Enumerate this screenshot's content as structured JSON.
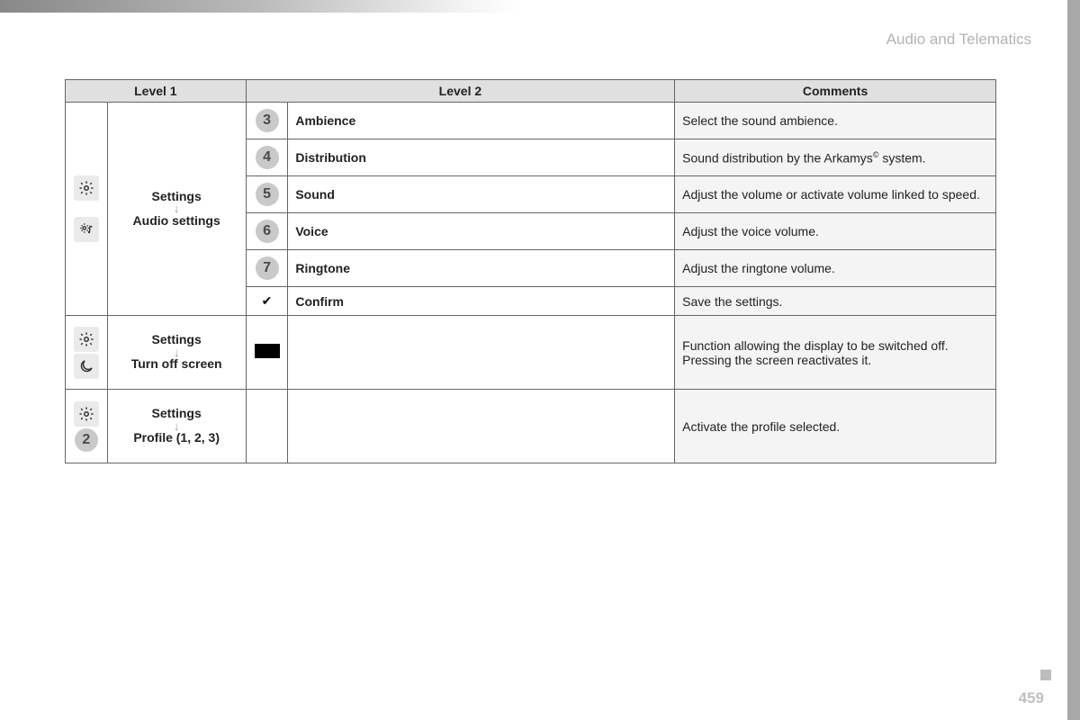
{
  "header": {
    "section_title": "Audio and Telematics"
  },
  "footer": {
    "page_number": "459"
  },
  "table": {
    "headers": {
      "col1": "Level 1",
      "col2": "Level 2",
      "col3": "Comments"
    },
    "block1": {
      "nav": {
        "top": "Settings",
        "bottom": "Audio settings"
      },
      "rows": [
        {
          "num": "3",
          "label": "Ambience",
          "comment": "Select the sound ambience."
        },
        {
          "num": "4",
          "label": "Distribution",
          "comment_html": "Sound distribution by the Arkamys<sup>©</sup> system."
        },
        {
          "num": "5",
          "label": "Sound",
          "comment": "Adjust the volume or activate volume linked to speed."
        },
        {
          "num": "6",
          "label": "Voice",
          "comment": "Adjust the voice volume."
        },
        {
          "num": "7",
          "label": "Ringtone",
          "comment": "Adjust the ringtone volume."
        },
        {
          "check": true,
          "label": "Confirm",
          "comment": "Save the settings."
        }
      ]
    },
    "block2": {
      "nav": {
        "top": "Settings",
        "bottom": "Turn off screen"
      },
      "comment": "Function allowing the display to be switched off. Pressing the screen reactivates it."
    },
    "block3": {
      "nav": {
        "top": "Settings",
        "bottom": "Profile (1, 2, 3)"
      },
      "num": "2",
      "comment": "Activate the profile selected."
    }
  }
}
